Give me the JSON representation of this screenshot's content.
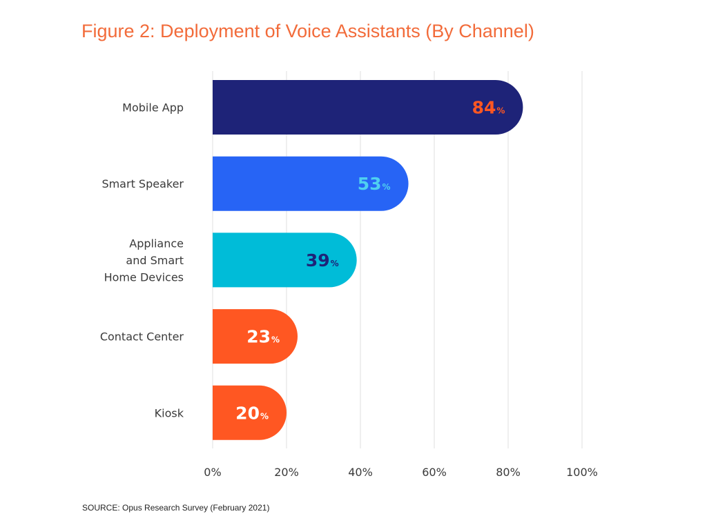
{
  "title": "Figure 2: Deployment of Voice Assistants (By Channel)",
  "source": "SOURCE: Opus Research Survey (February 2021)",
  "chart_data": {
    "type": "bar",
    "orientation": "horizontal",
    "title": "Figure 2: Deployment of Voice Assistants (By Channel)",
    "categories": [
      "Mobile App",
      "Smart Speaker",
      "Appliance and Smart Home Devices",
      "Contact Center",
      "Kiosk"
    ],
    "category_lines": [
      [
        "Mobile App"
      ],
      [
        "Smart Speaker"
      ],
      [
        "Appliance",
        "and Smart",
        "Home Devices"
      ],
      [
        "Contact Center"
      ],
      [
        "Kiosk"
      ]
    ],
    "values": [
      84,
      53,
      39,
      23,
      20
    ],
    "value_labels": [
      "84",
      "53",
      "39",
      "23",
      "20"
    ],
    "value_suffix": "%",
    "bar_colors": [
      "#1e2378",
      "#2764f5",
      "#00bcd8",
      "#ff5722",
      "#ff5722"
    ],
    "label_colors": [
      "#ff5722",
      "#4fd0f0",
      "#1e2378",
      "#ffffff",
      "#ffffff"
    ],
    "xlim": [
      0,
      100
    ],
    "ticks": [
      0,
      20,
      40,
      60,
      80,
      100
    ],
    "tick_labels": [
      "0%",
      "20%",
      "40%",
      "60%",
      "80%",
      "100%"
    ],
    "grid": true,
    "legend": "none",
    "xlabel": "",
    "ylabel": ""
  }
}
